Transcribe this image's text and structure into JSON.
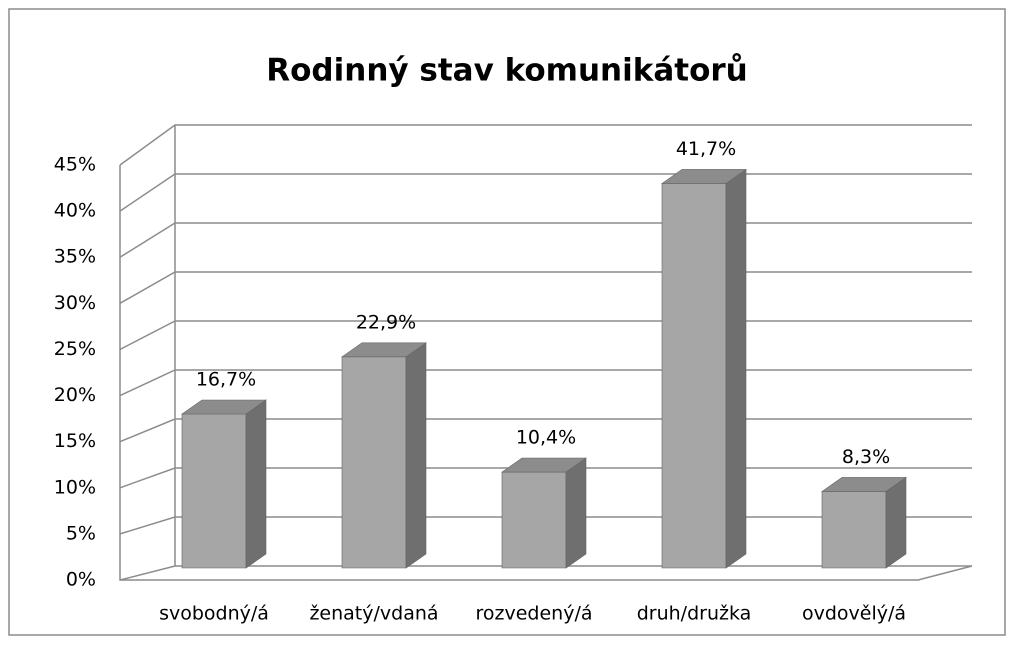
{
  "chart_data": {
    "type": "bar3d",
    "title": "Rodinný stav komunikátorů",
    "categories": [
      "svobodný/á",
      "ženatý/vdaná",
      "rozvedený/á",
      "druh/družka",
      "ovdovělý/á"
    ],
    "values": [
      16.7,
      22.9,
      10.4,
      41.7,
      8.3
    ],
    "value_labels": [
      "16,7%",
      "22,9%",
      "10,4%",
      "41,7%",
      "8,3%"
    ],
    "color": "#a6a6a6",
    "ylim": [
      0,
      45
    ],
    "yticks": [
      {
        "value": 0,
        "label": "0%"
      },
      {
        "value": 5,
        "label": "5%"
      },
      {
        "value": 10,
        "label": "10%"
      },
      {
        "value": 15,
        "label": "15%"
      },
      {
        "value": 20,
        "label": "20%"
      },
      {
        "value": 25,
        "label": "25%"
      },
      {
        "value": 30,
        "label": "30%"
      },
      {
        "value": 35,
        "label": "35%"
      },
      {
        "value": 40,
        "label": "40%"
      },
      {
        "value": 45,
        "label": "45%"
      }
    ],
    "grid": true
  }
}
